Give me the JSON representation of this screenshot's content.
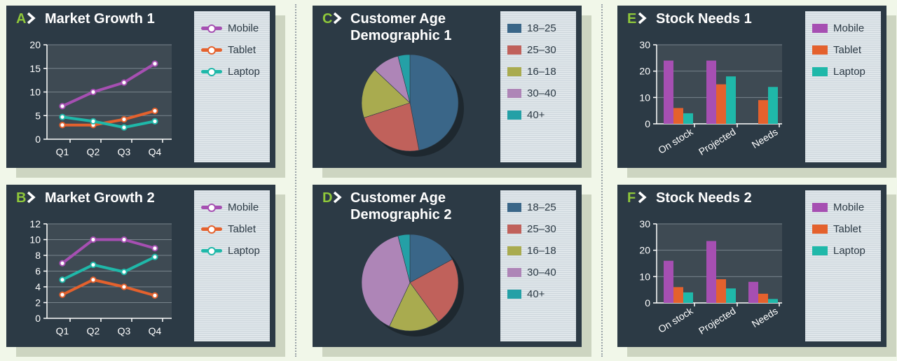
{
  "colors": {
    "mobile": "#a64fb2",
    "tablet": "#e4612d",
    "laptop": "#1fb8a9",
    "letter": "#8fc83a",
    "panel": "#2c3a45",
    "plot": "#3e4a53",
    "age": [
      "#3a6688",
      "#c0615b",
      "#a9ab4f",
      "#ae85b7",
      "#24a0a6"
    ]
  },
  "panels": [
    {
      "id": "A",
      "letter": "A",
      "title": [
        "Market Growth 1"
      ],
      "kind": "line",
      "legend": [
        "Mobile",
        "Tablet",
        "Laptop"
      ],
      "chart_data": {
        "type": "line",
        "categories": [
          "Q1",
          "Q2",
          "Q3",
          "Q4"
        ],
        "yticks": [
          "0",
          "5",
          "10",
          "15",
          "20"
        ],
        "ylim": [
          0,
          20
        ],
        "grid": true,
        "legend_position": "right",
        "series": [
          {
            "name": "Mobile",
            "values": [
              7,
              10,
              12,
              16
            ]
          },
          {
            "name": "Tablet",
            "values": [
              3,
              3,
              4.2,
              6
            ]
          },
          {
            "name": "Laptop",
            "values": [
              4.7,
              3.8,
              2.5,
              3.8
            ]
          }
        ]
      }
    },
    {
      "id": "B",
      "letter": "B",
      "title": [
        "Market Growth 2"
      ],
      "kind": "line",
      "legend": [
        "Mobile",
        "Tablet",
        "Laptop"
      ],
      "chart_data": {
        "type": "line",
        "categories": [
          "Q1",
          "Q2",
          "Q3",
          "Q4"
        ],
        "yticks": [
          "0",
          "2",
          "4",
          "6",
          "8",
          "10",
          "12"
        ],
        "ylim": [
          0,
          12
        ],
        "grid": true,
        "legend_position": "right",
        "series": [
          {
            "name": "Mobile",
            "values": [
              7,
              10,
              10,
              8.9
            ]
          },
          {
            "name": "Tablet",
            "values": [
              3,
              4.9,
              4,
              2.9
            ]
          },
          {
            "name": "Laptop",
            "values": [
              4.9,
              6.8,
              5.9,
              7.8
            ]
          }
        ]
      }
    },
    {
      "id": "C",
      "letter": "C",
      "title": [
        "Customer Age",
        "Demographic 1"
      ],
      "kind": "pie",
      "legend": [
        "18–25",
        "25–30",
        "16–18",
        "30–40",
        "40+"
      ],
      "chart_data": {
        "type": "pie",
        "labels": [
          "18–25",
          "25–30",
          "16–18",
          "30–40",
          "40+"
        ],
        "values": [
          47,
          23,
          17,
          9,
          4
        ],
        "legend_position": "right"
      }
    },
    {
      "id": "D",
      "letter": "D",
      "title": [
        "Customer Age",
        "Demographic 2"
      ],
      "kind": "pie",
      "legend": [
        "18–25",
        "25–30",
        "16–18",
        "30–40",
        "40+"
      ],
      "chart_data": {
        "type": "pie",
        "labels": [
          "18–25",
          "25–30",
          "16–18",
          "30–40",
          "40+"
        ],
        "values": [
          17,
          23,
          17,
          39,
          4
        ],
        "legend_position": "right"
      }
    },
    {
      "id": "E",
      "letter": "E",
      "title": [
        "Stock Needs 1"
      ],
      "kind": "bar",
      "legend": [
        "Mobile",
        "Tablet",
        "Laptop"
      ],
      "chart_data": {
        "type": "bar",
        "categories": [
          "On stock",
          "Projected",
          "Needs"
        ],
        "yticks": [
          "0",
          "10",
          "20",
          "30"
        ],
        "ylim": [
          0,
          30
        ],
        "grid": true,
        "legend_position": "right",
        "series": [
          {
            "name": "Mobile",
            "values": [
              24,
              24,
              0
            ]
          },
          {
            "name": "Tablet",
            "values": [
              6,
              15,
              9
            ]
          },
          {
            "name": "Laptop",
            "values": [
              4,
              18,
              14
            ]
          }
        ]
      }
    },
    {
      "id": "F",
      "letter": "F",
      "title": [
        "Stock Needs 2"
      ],
      "kind": "bar",
      "legend": [
        "Mobile",
        "Tablet",
        "Laptop"
      ],
      "chart_data": {
        "type": "bar",
        "categories": [
          "On stock",
          "Projected",
          "Needs"
        ],
        "yticks": [
          "0",
          "10",
          "20",
          "30"
        ],
        "ylim": [
          0,
          30
        ],
        "grid": true,
        "legend_position": "right",
        "series": [
          {
            "name": "Mobile",
            "values": [
              16,
              23.5,
              8
            ]
          },
          {
            "name": "Tablet",
            "values": [
              6,
              9,
              3.5
            ]
          },
          {
            "name": "Laptop",
            "values": [
              4,
              5.5,
              1.5
            ]
          }
        ]
      }
    }
  ]
}
